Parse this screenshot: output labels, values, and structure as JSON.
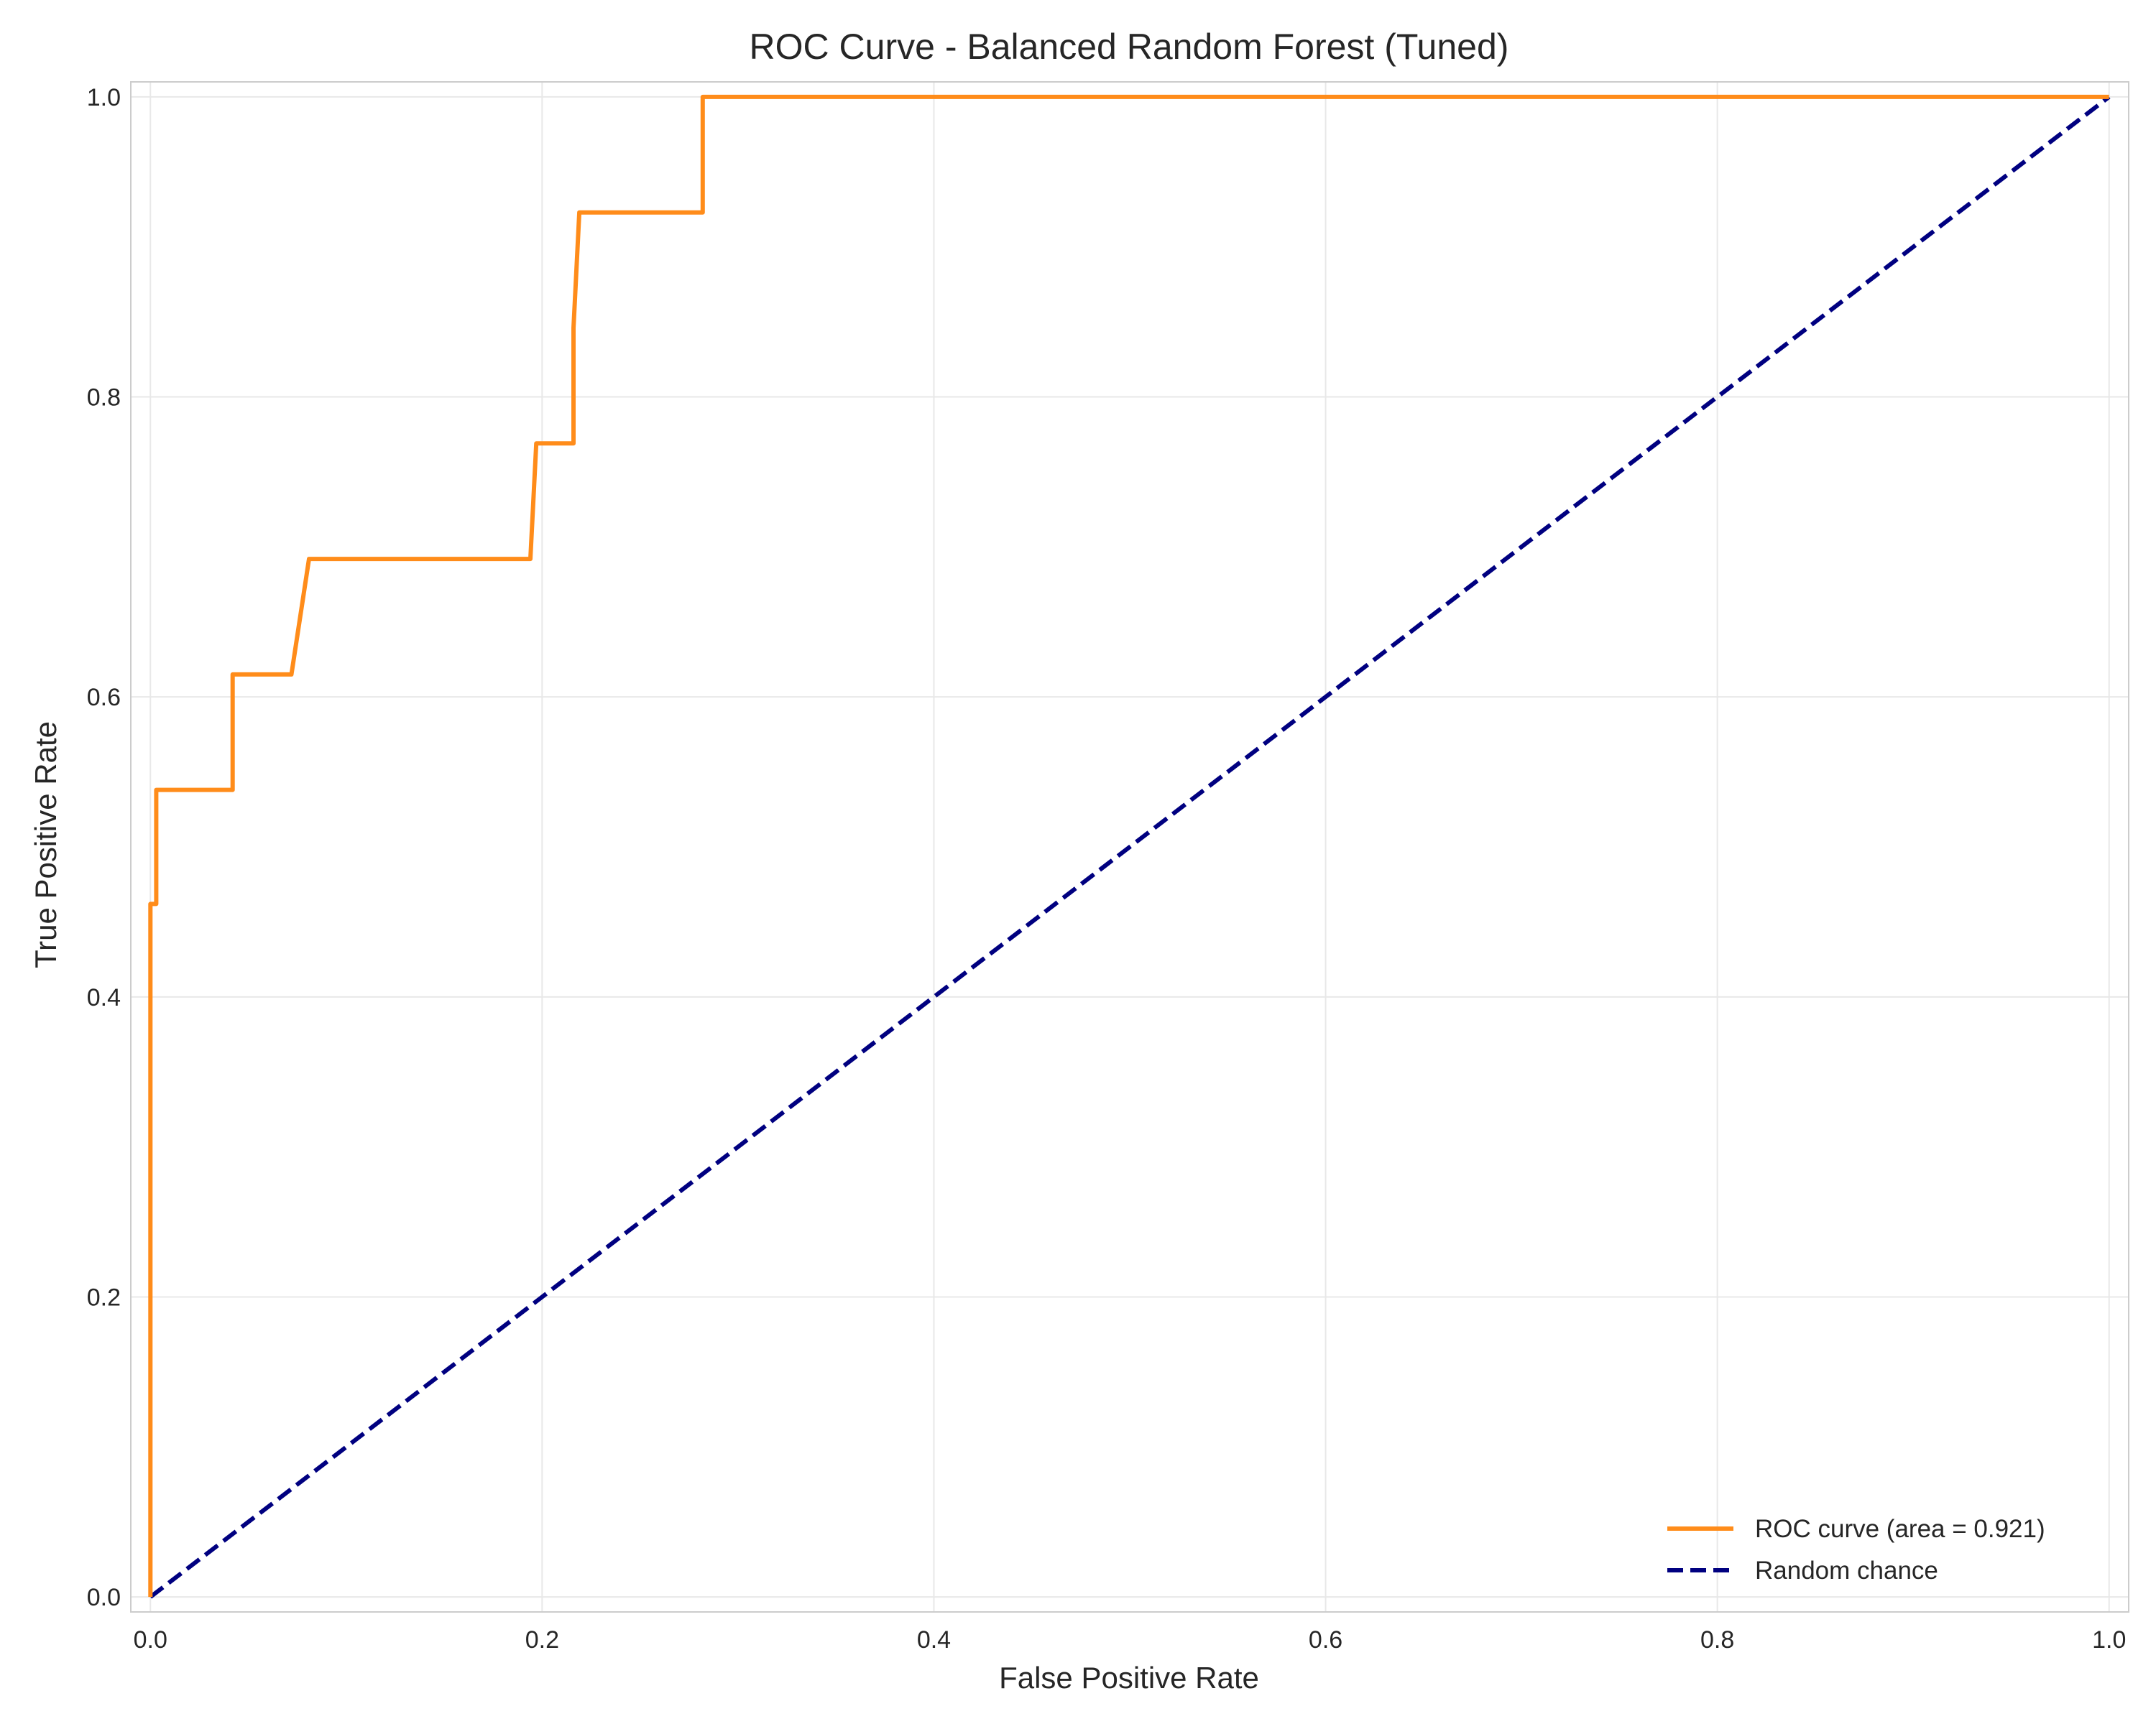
{
  "chart_data": {
    "type": "line",
    "title": "ROC Curve - Balanced Random Forest (Tuned)",
    "xlabel": "False Positive Rate",
    "ylabel": "True Positive Rate",
    "xlim": [
      -0.01,
      1.01
    ],
    "ylim": [
      -0.01,
      1.01
    ],
    "xticks": [
      0.0,
      0.2,
      0.4,
      0.6,
      0.8,
      1.0
    ],
    "yticks": [
      0.0,
      0.2,
      0.4,
      0.6,
      0.8,
      1.0
    ],
    "xtick_labels": [
      "0.0",
      "0.2",
      "0.4",
      "0.6",
      "0.8",
      "1.0"
    ],
    "ytick_labels": [
      "0.0",
      "0.2",
      "0.4",
      "0.6",
      "0.8",
      "1.0"
    ],
    "grid": true,
    "legend_position": "lower-right",
    "series": [
      {
        "name": "ROC curve (area = 0.921)",
        "color": "#ff8c1a",
        "style": "solid",
        "x": [
          0.0,
          0.0,
          0.0,
          0.003,
          0.003,
          0.042,
          0.042,
          0.072,
          0.081,
          0.194,
          0.197,
          0.216,
          0.216,
          0.219,
          0.282,
          0.282,
          1.0
        ],
        "y": [
          0.0,
          0.462,
          0.462,
          0.462,
          0.538,
          0.538,
          0.615,
          0.615,
          0.692,
          0.692,
          0.769,
          0.769,
          0.846,
          0.923,
          0.923,
          1.0,
          1.0
        ]
      },
      {
        "name": "Random chance",
        "color": "#000080",
        "style": "dashed",
        "x": [
          0.0,
          1.0
        ],
        "y": [
          0.0,
          1.0
        ]
      }
    ]
  }
}
